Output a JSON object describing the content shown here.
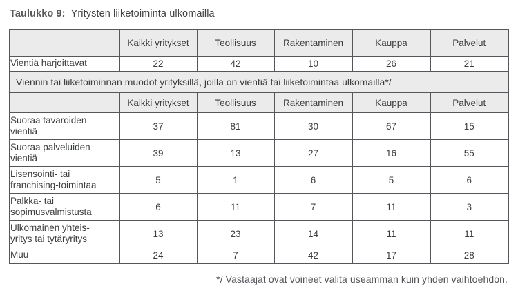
{
  "title": {
    "label": "Taulukko 9:",
    "text": "Yritysten liiketoiminta ulkomailla"
  },
  "table": {
    "columns": [
      "Kaikki yritykset",
      "Teollisuus",
      "Rakentaminen",
      "Kauppa",
      "Palvelut"
    ],
    "corner_cell": "",
    "top_rows": [
      {
        "label": "Vientiä harjoittavat",
        "values": [
          "22",
          "42",
          "10",
          "26",
          "21"
        ]
      }
    ],
    "band": "Viennin tai liiketoiminnan muodot yrityksillä, joilla on vientiä tai liiketoimintaa ulkomailla*/",
    "bottom_rows": [
      {
        "label": "Suoraa tavaroiden\nvientiä",
        "values": [
          "37",
          "81",
          "30",
          "67",
          "15"
        ]
      },
      {
        "label": "Suoraa palveluiden\nvientiä",
        "values": [
          "39",
          "13",
          "27",
          "16",
          "55"
        ]
      },
      {
        "label": "Lisensointi- tai\nfranchising-toimintaa",
        "values": [
          "5",
          "1",
          "6",
          "5",
          "6"
        ]
      },
      {
        "label": "Palkka- tai\nsopimusvalmistusta",
        "values": [
          "6",
          "11",
          "7",
          "11",
          "3"
        ]
      },
      {
        "label": "Ulkomainen yhteis-\nyritys tai tytäryritys",
        "values": [
          "13",
          "23",
          "14",
          "11",
          "11"
        ]
      },
      {
        "label": "Muu",
        "values": [
          "24",
          "7",
          "42",
          "17",
          "28"
        ]
      }
    ]
  },
  "footnote": "*/ Vastaajat ovat voineet valita useamman kuin yhden vaihtoehdon.",
  "colors": {
    "header_background": "#ebebeb",
    "border": "#56575a",
    "body_text": "#3c3d3f",
    "title_bold_text": "#58595b",
    "footnote_text": "#54565a",
    "page_background": "#ffffff"
  },
  "chart_data": {
    "type": "table",
    "title": "Taulukko 9: Yritysten liiketoiminta ulkomailla",
    "columns": [
      "Kaikki yritykset",
      "Teollisuus",
      "Rakentaminen",
      "Kauppa",
      "Palvelut"
    ],
    "rows": [
      {
        "label": "Vientiä harjoittavat",
        "values": [
          22,
          42,
          10,
          26,
          21
        ]
      },
      {
        "label": "Suoraa tavaroiden vientiä",
        "values": [
          37,
          81,
          30,
          67,
          15
        ]
      },
      {
        "label": "Suoraa palveluiden vientiä",
        "values": [
          39,
          13,
          27,
          16,
          55
        ]
      },
      {
        "label": "Lisensointi- tai franchising-toimintaa",
        "values": [
          5,
          1,
          6,
          5,
          6
        ]
      },
      {
        "label": "Palkka- tai sopimusvalmistusta",
        "values": [
          6,
          11,
          7,
          11,
          3
        ]
      },
      {
        "label": "Ulkomainen yhteisyritys tai tytäryritys",
        "values": [
          13,
          23,
          14,
          11,
          11
        ]
      },
      {
        "label": "Muu",
        "values": [
          24,
          7,
          42,
          17,
          28
        ]
      }
    ],
    "section_note": "Viennin tai liiketoiminnan muodot yrityksillä, joilla on vientiä tai liiketoimintaa ulkomailla*/",
    "footnote": "*/ Vastaajat ovat voineet valita useamman kuin yhden vaihtoehdon."
  }
}
